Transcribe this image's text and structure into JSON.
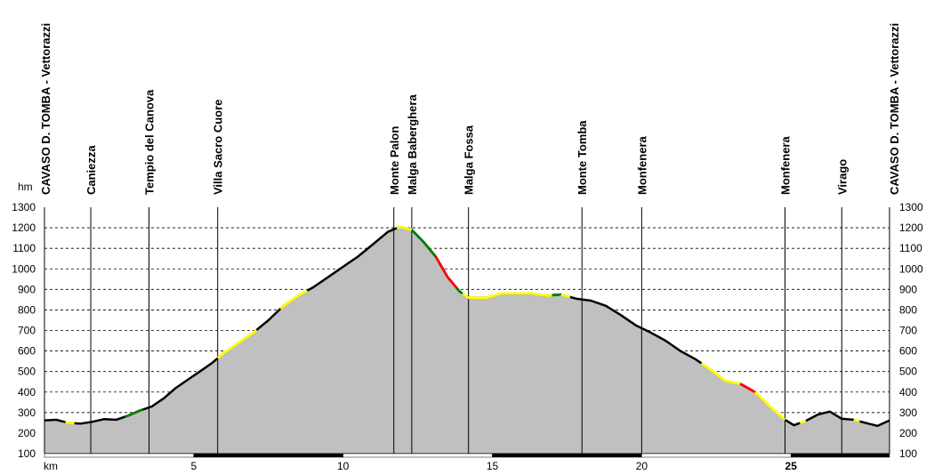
{
  "chart_data": {
    "type": "area",
    "title": "",
    "xlabel": "km",
    "ylabel": "hm",
    "xlim": [
      0,
      28.3
    ],
    "ylim": [
      100,
      1300
    ],
    "x_ticks": [
      {
        "value": 5,
        "label": "5",
        "bold": false
      },
      {
        "value": 10,
        "label": "10",
        "bold": false
      },
      {
        "value": 15,
        "label": "15",
        "bold": false
      },
      {
        "value": 20,
        "label": "20",
        "bold": false
      },
      {
        "value": 25,
        "label": "25",
        "bold": true
      }
    ],
    "y_ticks": [
      100,
      200,
      300,
      400,
      500,
      600,
      700,
      800,
      900,
      1000,
      1100,
      1200,
      1300
    ],
    "grid": true,
    "colors": {
      "fill": "#c0c0c0",
      "line": "#000000",
      "grade_easy": "#ffff00",
      "grade_medium": "#008000",
      "grade_hard": "#ff0000",
      "grid": "#000000"
    },
    "waypoints": [
      {
        "x": 0.0,
        "label": "CAVASO D. TOMBA - Vettorazzi"
      },
      {
        "x": 1.55,
        "label": "Caniezza"
      },
      {
        "x": 3.5,
        "label": "Tempio del Canova"
      },
      {
        "x": 5.8,
        "label": "Villa Sacro Cuore"
      },
      {
        "x": 11.7,
        "label": "Monte Palon"
      },
      {
        "x": 12.3,
        "label": "Malga Baberghera"
      },
      {
        "x": 14.2,
        "label": "Malga Fossa"
      },
      {
        "x": 18.0,
        "label": "Monte Tomba"
      },
      {
        "x": 20.0,
        "label": "Monfenera"
      },
      {
        "x": 24.8,
        "label": "Monfenera"
      },
      {
        "x": 26.7,
        "label": "Virago"
      },
      {
        "x": 28.3,
        "label": "CAVASO D. TOMBA - Vettorazzi"
      }
    ],
    "profile": [
      [
        0.0,
        262
      ],
      [
        0.4,
        265
      ],
      [
        0.8,
        250
      ],
      [
        1.2,
        246
      ],
      [
        1.6,
        255
      ],
      [
        2.0,
        268
      ],
      [
        2.4,
        265
      ],
      [
        2.8,
        285
      ],
      [
        3.2,
        310
      ],
      [
        3.6,
        330
      ],
      [
        4.0,
        370
      ],
      [
        4.4,
        420
      ],
      [
        4.8,
        460
      ],
      [
        5.2,
        500
      ],
      [
        5.6,
        540
      ],
      [
        6.0,
        590
      ],
      [
        6.5,
        640
      ],
      [
        7.0,
        690
      ],
      [
        7.5,
        750
      ],
      [
        8.0,
        820
      ],
      [
        8.5,
        870
      ],
      [
        9.0,
        910
      ],
      [
        9.5,
        960
      ],
      [
        10.0,
        1010
      ],
      [
        10.5,
        1060
      ],
      [
        11.0,
        1120
      ],
      [
        11.5,
        1180
      ],
      [
        11.9,
        1205
      ],
      [
        12.3,
        1190
      ],
      [
        12.7,
        1130
      ],
      [
        13.1,
        1060
      ],
      [
        13.5,
        960
      ],
      [
        13.9,
        890
      ],
      [
        14.2,
        860
      ],
      [
        14.8,
        860
      ],
      [
        15.3,
        880
      ],
      [
        15.8,
        880
      ],
      [
        16.3,
        880
      ],
      [
        16.8,
        870
      ],
      [
        17.3,
        875
      ],
      [
        17.8,
        855
      ],
      [
        18.3,
        845
      ],
      [
        18.8,
        820
      ],
      [
        19.3,
        775
      ],
      [
        19.8,
        725
      ],
      [
        20.3,
        690
      ],
      [
        20.8,
        650
      ],
      [
        21.3,
        600
      ],
      [
        21.8,
        560
      ],
      [
        22.3,
        510
      ],
      [
        22.8,
        455
      ],
      [
        23.3,
        440
      ],
      [
        23.8,
        400
      ],
      [
        24.3,
        330
      ],
      [
        24.8,
        265
      ],
      [
        25.1,
        238
      ],
      [
        25.5,
        260
      ],
      [
        25.9,
        290
      ],
      [
        26.3,
        305
      ],
      [
        26.7,
        270
      ],
      [
        27.1,
        265
      ],
      [
        27.5,
        250
      ],
      [
        27.9,
        235
      ],
      [
        28.3,
        262
      ]
    ],
    "grade_segments": [
      {
        "from": 0.7,
        "to": 1.0,
        "grade": "easy"
      },
      {
        "from": 2.7,
        "to": 3.3,
        "grade": "medium"
      },
      {
        "from": 5.8,
        "to": 7.1,
        "grade": "easy"
      },
      {
        "from": 7.9,
        "to": 8.8,
        "grade": "easy"
      },
      {
        "from": 11.8,
        "to": 12.3,
        "grade": "easy"
      },
      {
        "from": 12.3,
        "to": 13.1,
        "grade": "medium"
      },
      {
        "from": 13.1,
        "to": 13.8,
        "grade": "hard"
      },
      {
        "from": 13.8,
        "to": 14.0,
        "grade": "medium"
      },
      {
        "from": 14.0,
        "to": 17.0,
        "grade": "easy"
      },
      {
        "from": 17.0,
        "to": 17.3,
        "grade": "medium"
      },
      {
        "from": 17.3,
        "to": 17.6,
        "grade": "easy"
      },
      {
        "from": 22.0,
        "to": 23.3,
        "grade": "easy"
      },
      {
        "from": 23.3,
        "to": 23.8,
        "grade": "hard"
      },
      {
        "from": 23.8,
        "to": 24.8,
        "grade": "easy"
      },
      {
        "from": 25.3,
        "to": 25.5,
        "grade": "easy"
      },
      {
        "from": 27.1,
        "to": 27.3,
        "grade": "easy"
      }
    ]
  }
}
